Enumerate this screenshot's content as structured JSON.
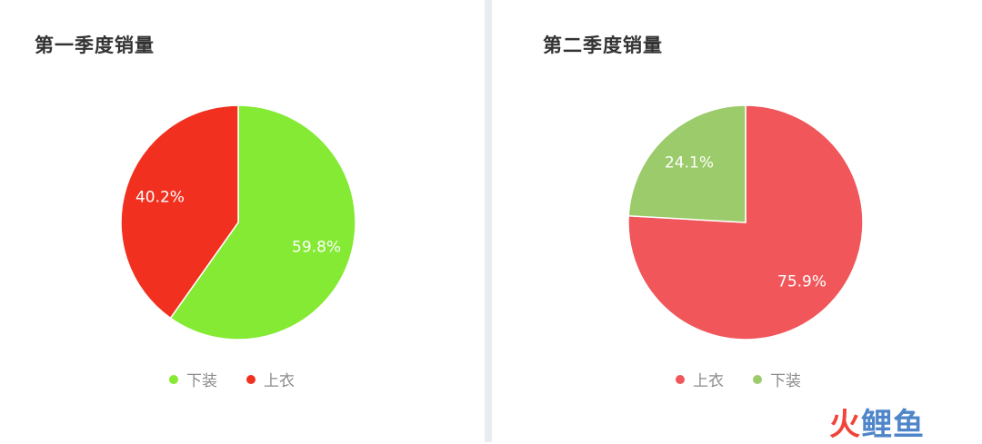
{
  "chart_data": [
    {
      "type": "pie",
      "title": "第一季度销量",
      "slices": [
        {
          "label": "下装",
          "value": 59.8,
          "display": "59.8%",
          "color": "#84ea33"
        },
        {
          "label": "上衣",
          "value": 40.2,
          "display": "40.2%",
          "color": "#f1301f"
        }
      ],
      "legend": {
        "position": "bottom",
        "items": [
          "下装",
          "上衣"
        ]
      }
    },
    {
      "type": "pie",
      "title": "第二季度销量",
      "slices": [
        {
          "label": "上衣",
          "value": 75.9,
          "display": "75.9%",
          "color": "#f0565a"
        },
        {
          "label": "下装",
          "value": 24.1,
          "display": "24.1%",
          "color": "#9bcb6a"
        }
      ],
      "legend": {
        "position": "bottom",
        "items": [
          "上衣",
          "下装"
        ]
      }
    }
  ],
  "watermark": {
    "part1": "火",
    "part2": "鲤鱼"
  }
}
